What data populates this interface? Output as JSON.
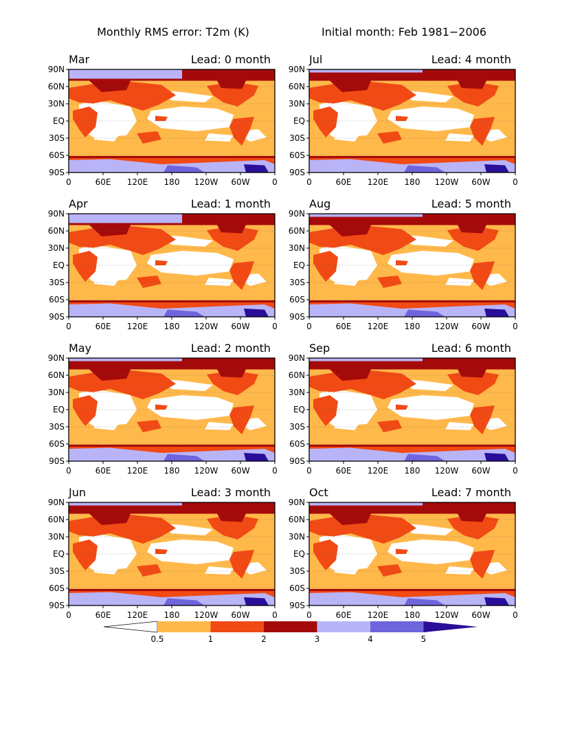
{
  "title_left": "Monthly RMS error: T2m (K)",
  "title_right": "Initial month: Feb 1981−2006",
  "lat_labels": [
    "90N",
    "60N",
    "30N",
    "EQ",
    "30S",
    "60S",
    "90S"
  ],
  "lon_labels": [
    "0",
    "60E",
    "120E",
    "180",
    "120W",
    "60W",
    "0"
  ],
  "panels": [
    {
      "month": "Mar",
      "lead": "Lead: 0 month"
    },
    {
      "month": "Jul",
      "lead": "Lead: 4 month"
    },
    {
      "month": "Apr",
      "lead": "Lead: 1 month"
    },
    {
      "month": "Aug",
      "lead": "Lead: 5 month"
    },
    {
      "month": "May",
      "lead": "Lead: 2 month"
    },
    {
      "month": "Sep",
      "lead": "Lead: 6 month"
    },
    {
      "month": "Jun",
      "lead": "Lead: 3 month"
    },
    {
      "month": "Oct",
      "lead": "Lead: 7 month"
    }
  ],
  "colorbar": {
    "labels": [
      "0.5",
      "1",
      "2",
      "3",
      "4",
      "5"
    ],
    "colors": [
      "#ffffff",
      "#ffb84a",
      "#f14a14",
      "#a50a0a",
      "#b9b4f8",
      "#6e64dc",
      "#2a0e9a"
    ]
  }
}
